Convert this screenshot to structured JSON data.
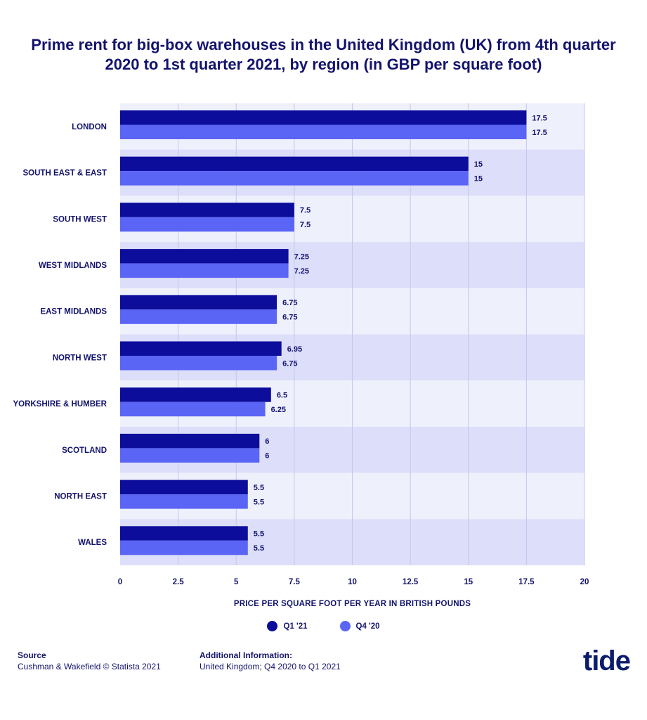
{
  "title": "Prime rent for big-box warehouses in the United Kingdom (UK) from 4th quarter 2020 to 1st quarter 2021, by region (in GBP per square foot)",
  "chart_data": {
    "type": "bar",
    "orientation": "horizontal",
    "categories": [
      "LONDON",
      "SOUTH EAST & EAST",
      "SOUTH WEST",
      "WEST MIDLANDS",
      "EAST MIDLANDS",
      "NORTH WEST",
      "YORKSHIRE & HUMBER",
      "SCOTLAND",
      "NORTH EAST",
      "WALES"
    ],
    "series": [
      {
        "name": "Q1 '21",
        "values": [
          17.5,
          15,
          7.5,
          7.25,
          6.75,
          6.95,
          6.5,
          6,
          5.5,
          5.5
        ],
        "color": "#0d0d9c"
      },
      {
        "name": "Q4 '20",
        "values": [
          17.5,
          15,
          7.5,
          7.25,
          6.75,
          6.75,
          6.25,
          6,
          5.5,
          5.5
        ],
        "color": "#5a64f5"
      }
    ],
    "xlabel": "PRICE PER SQUARE FOOT PER YEAR IN BRITISH POUNDS",
    "xlim": [
      0,
      20
    ],
    "xticks": [
      "0",
      "2.5",
      "5",
      "7.5",
      "10",
      "12.5",
      "15",
      "17.5",
      "20"
    ],
    "grid": true,
    "legend_position": "bottom-center",
    "band_colors": [
      "#eef0fc",
      "#dcdefa"
    ]
  },
  "legend": {
    "items": [
      {
        "label": "Q1 '21",
        "color": "#0d0d9c"
      },
      {
        "label": "Q4 '20",
        "color": "#5a64f5"
      }
    ]
  },
  "footer": {
    "source_head": "Source",
    "source_text": "Cushman & Wakefield  © Statista 2021",
    "info_head": "Additional Information:",
    "info_text": "United Kingdom; Q4 2020 to Q1 2021"
  },
  "brand": "tide"
}
